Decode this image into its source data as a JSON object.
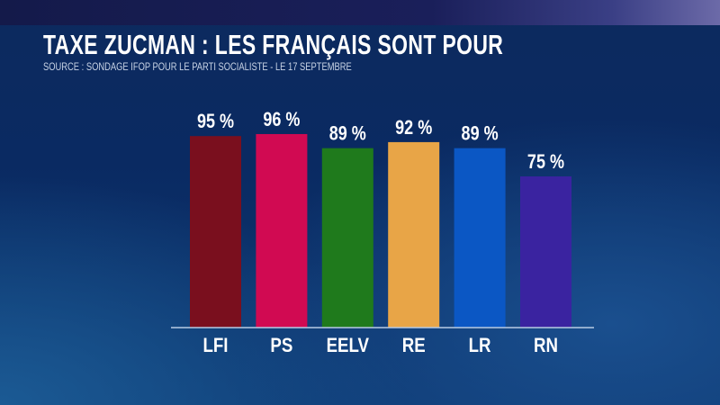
{
  "chart_data": {
    "type": "bar",
    "title": "TAXE ZUCMAN : LES FRANÇAIS SONT POUR",
    "subtitle": "SOURCE : SONDAGE IFOP POUR LE PARTI SOCIALISTE - LE 17 SEPTEMBRE",
    "categories": [
      "LFI",
      "PS",
      "EELV",
      "RE",
      "LR",
      "RN"
    ],
    "values": [
      95,
      96,
      89,
      92,
      89,
      75
    ],
    "data_labels": [
      "95 %",
      "96 %",
      "89 %",
      "92 %",
      "89 %",
      "75 %"
    ],
    "colors": [
      "#7a0f1e",
      "#d10a52",
      "#1f7a1c",
      "#e8a547",
      "#0b57c4",
      "#3a23a0"
    ],
    "xlabel": "",
    "ylabel": "",
    "ylim": [
      0,
      100
    ],
    "grid": false
  }
}
